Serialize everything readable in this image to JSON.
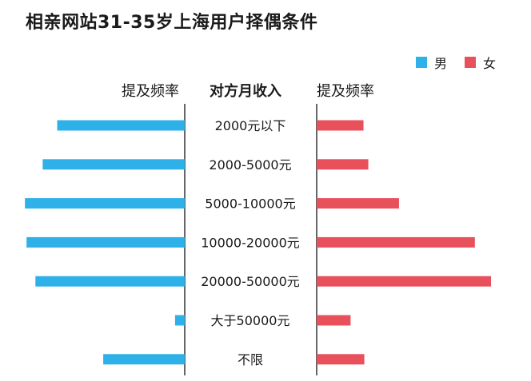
{
  "title": "相亲网站31-35岁上海用户择偶条件",
  "headers": {
    "left": "提及频率",
    "center": "对方月收入",
    "right": "提及频率"
  },
  "colors": {
    "male": "#2db1e8",
    "female": "#e8505b",
    "divider": "#333333"
  },
  "chart_data": {
    "type": "bar",
    "orientation": "horizontal-butterfly",
    "categories": [
      "2000元以下",
      "2000-5000元",
      "5000-10000元",
      "10000-20000元",
      "20000-50000元",
      "大于50000元",
      "不限"
    ],
    "series": [
      {
        "name": "男",
        "values": [
          158,
          176,
          198,
          196,
          185,
          12,
          101
        ]
      },
      {
        "name": "女",
        "values": [
          58,
          64,
          102,
          196,
          216,
          42,
          59
        ]
      }
    ],
    "xlabel": "提及频率",
    "ylabel": "对方月收入",
    "grid": false,
    "legend": "top-right"
  }
}
